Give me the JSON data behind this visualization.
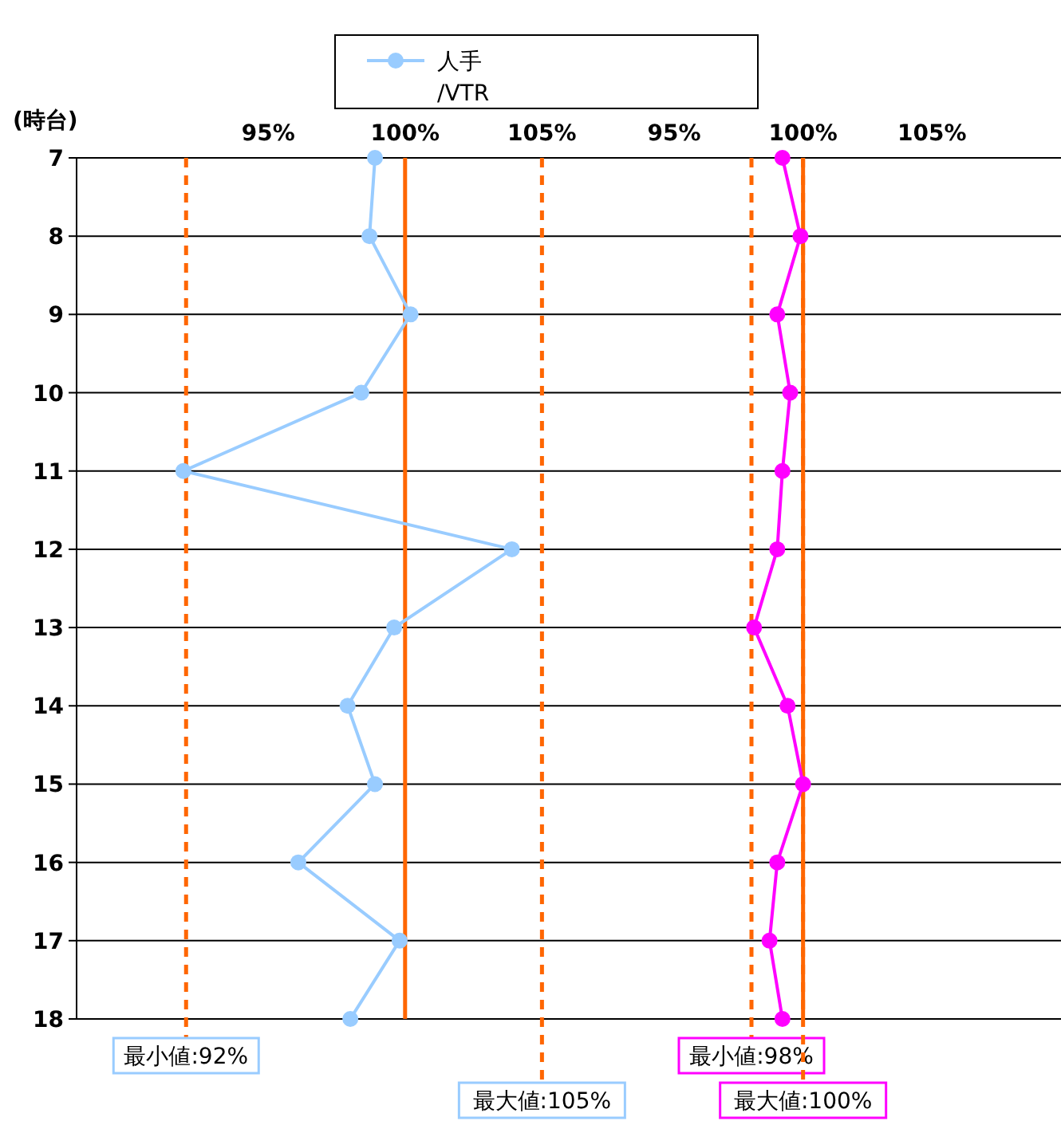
{
  "chart_data": [
    {
      "type": "line",
      "ylabel": "(時台)",
      "categories": [
        "7",
        "8",
        "9",
        "10",
        "11",
        "12",
        "13",
        "14",
        "15",
        "16",
        "17",
        "18"
      ],
      "orientation": "horizontal",
      "xlim": [
        88,
        107
      ],
      "xticks": [
        {
          "value": 95,
          "label": "95%"
        },
        {
          "value": 100,
          "label": "100%"
        },
        {
          "value": 105,
          "label": "105%"
        }
      ],
      "grid": "y",
      "legend": "top",
      "marker": "circle",
      "line_style": "solid",
      "series": [
        {
          "name": "人手\n/VTR",
          "color": "#99ccff",
          "values": [
            98.9,
            98.7,
            100.2,
            98.4,
            91.9,
            103.9,
            99.6,
            97.9,
            98.9,
            96.1,
            99.8,
            98.0
          ]
        }
      ],
      "ref_lines": [
        {
          "axis": "x",
          "value": 100,
          "color": "#ff6600",
          "line_style": "solid"
        },
        {
          "axis": "x",
          "value": 92,
          "label": "最小値:92%",
          "color": "#ff6600",
          "line_style": "dashed"
        },
        {
          "axis": "x",
          "value": 105,
          "label": "最大値:105%",
          "color": "#ff6600",
          "line_style": "dashed"
        }
      ]
    },
    {
      "type": "line",
      "categories": [
        "7",
        "8",
        "9",
        "10",
        "11",
        "12",
        "13",
        "14",
        "15",
        "16",
        "17",
        "18"
      ],
      "orientation": "horizontal",
      "xlim": [
        92,
        110
      ],
      "xticks": [
        {
          "value": 95,
          "label": "95%"
        },
        {
          "value": 100,
          "label": "100%"
        },
        {
          "value": 105,
          "label": "105%"
        }
      ],
      "grid": "y",
      "tick_labels": "x",
      "marker": "circle",
      "line_style": "solid",
      "series": [
        {
          "color": "#ff00ff",
          "values": [
            99.2,
            99.9,
            99.0,
            99.5,
            99.2,
            99.0,
            98.1,
            99.4,
            100.0,
            99.0,
            98.7,
            99.2
          ]
        }
      ],
      "ref_lines": [
        {
          "axis": "x",
          "value": 100,
          "color": "#ff6600",
          "line_style": "solid"
        },
        {
          "axis": "x",
          "value": 98,
          "label": "最小値:98%",
          "color": "#ff6600",
          "line_style": "dashed"
        },
        {
          "axis": "x",
          "value": 100,
          "label": "最大値:100%",
          "color": "#ff6600",
          "line_style": "dashed"
        }
      ]
    }
  ]
}
